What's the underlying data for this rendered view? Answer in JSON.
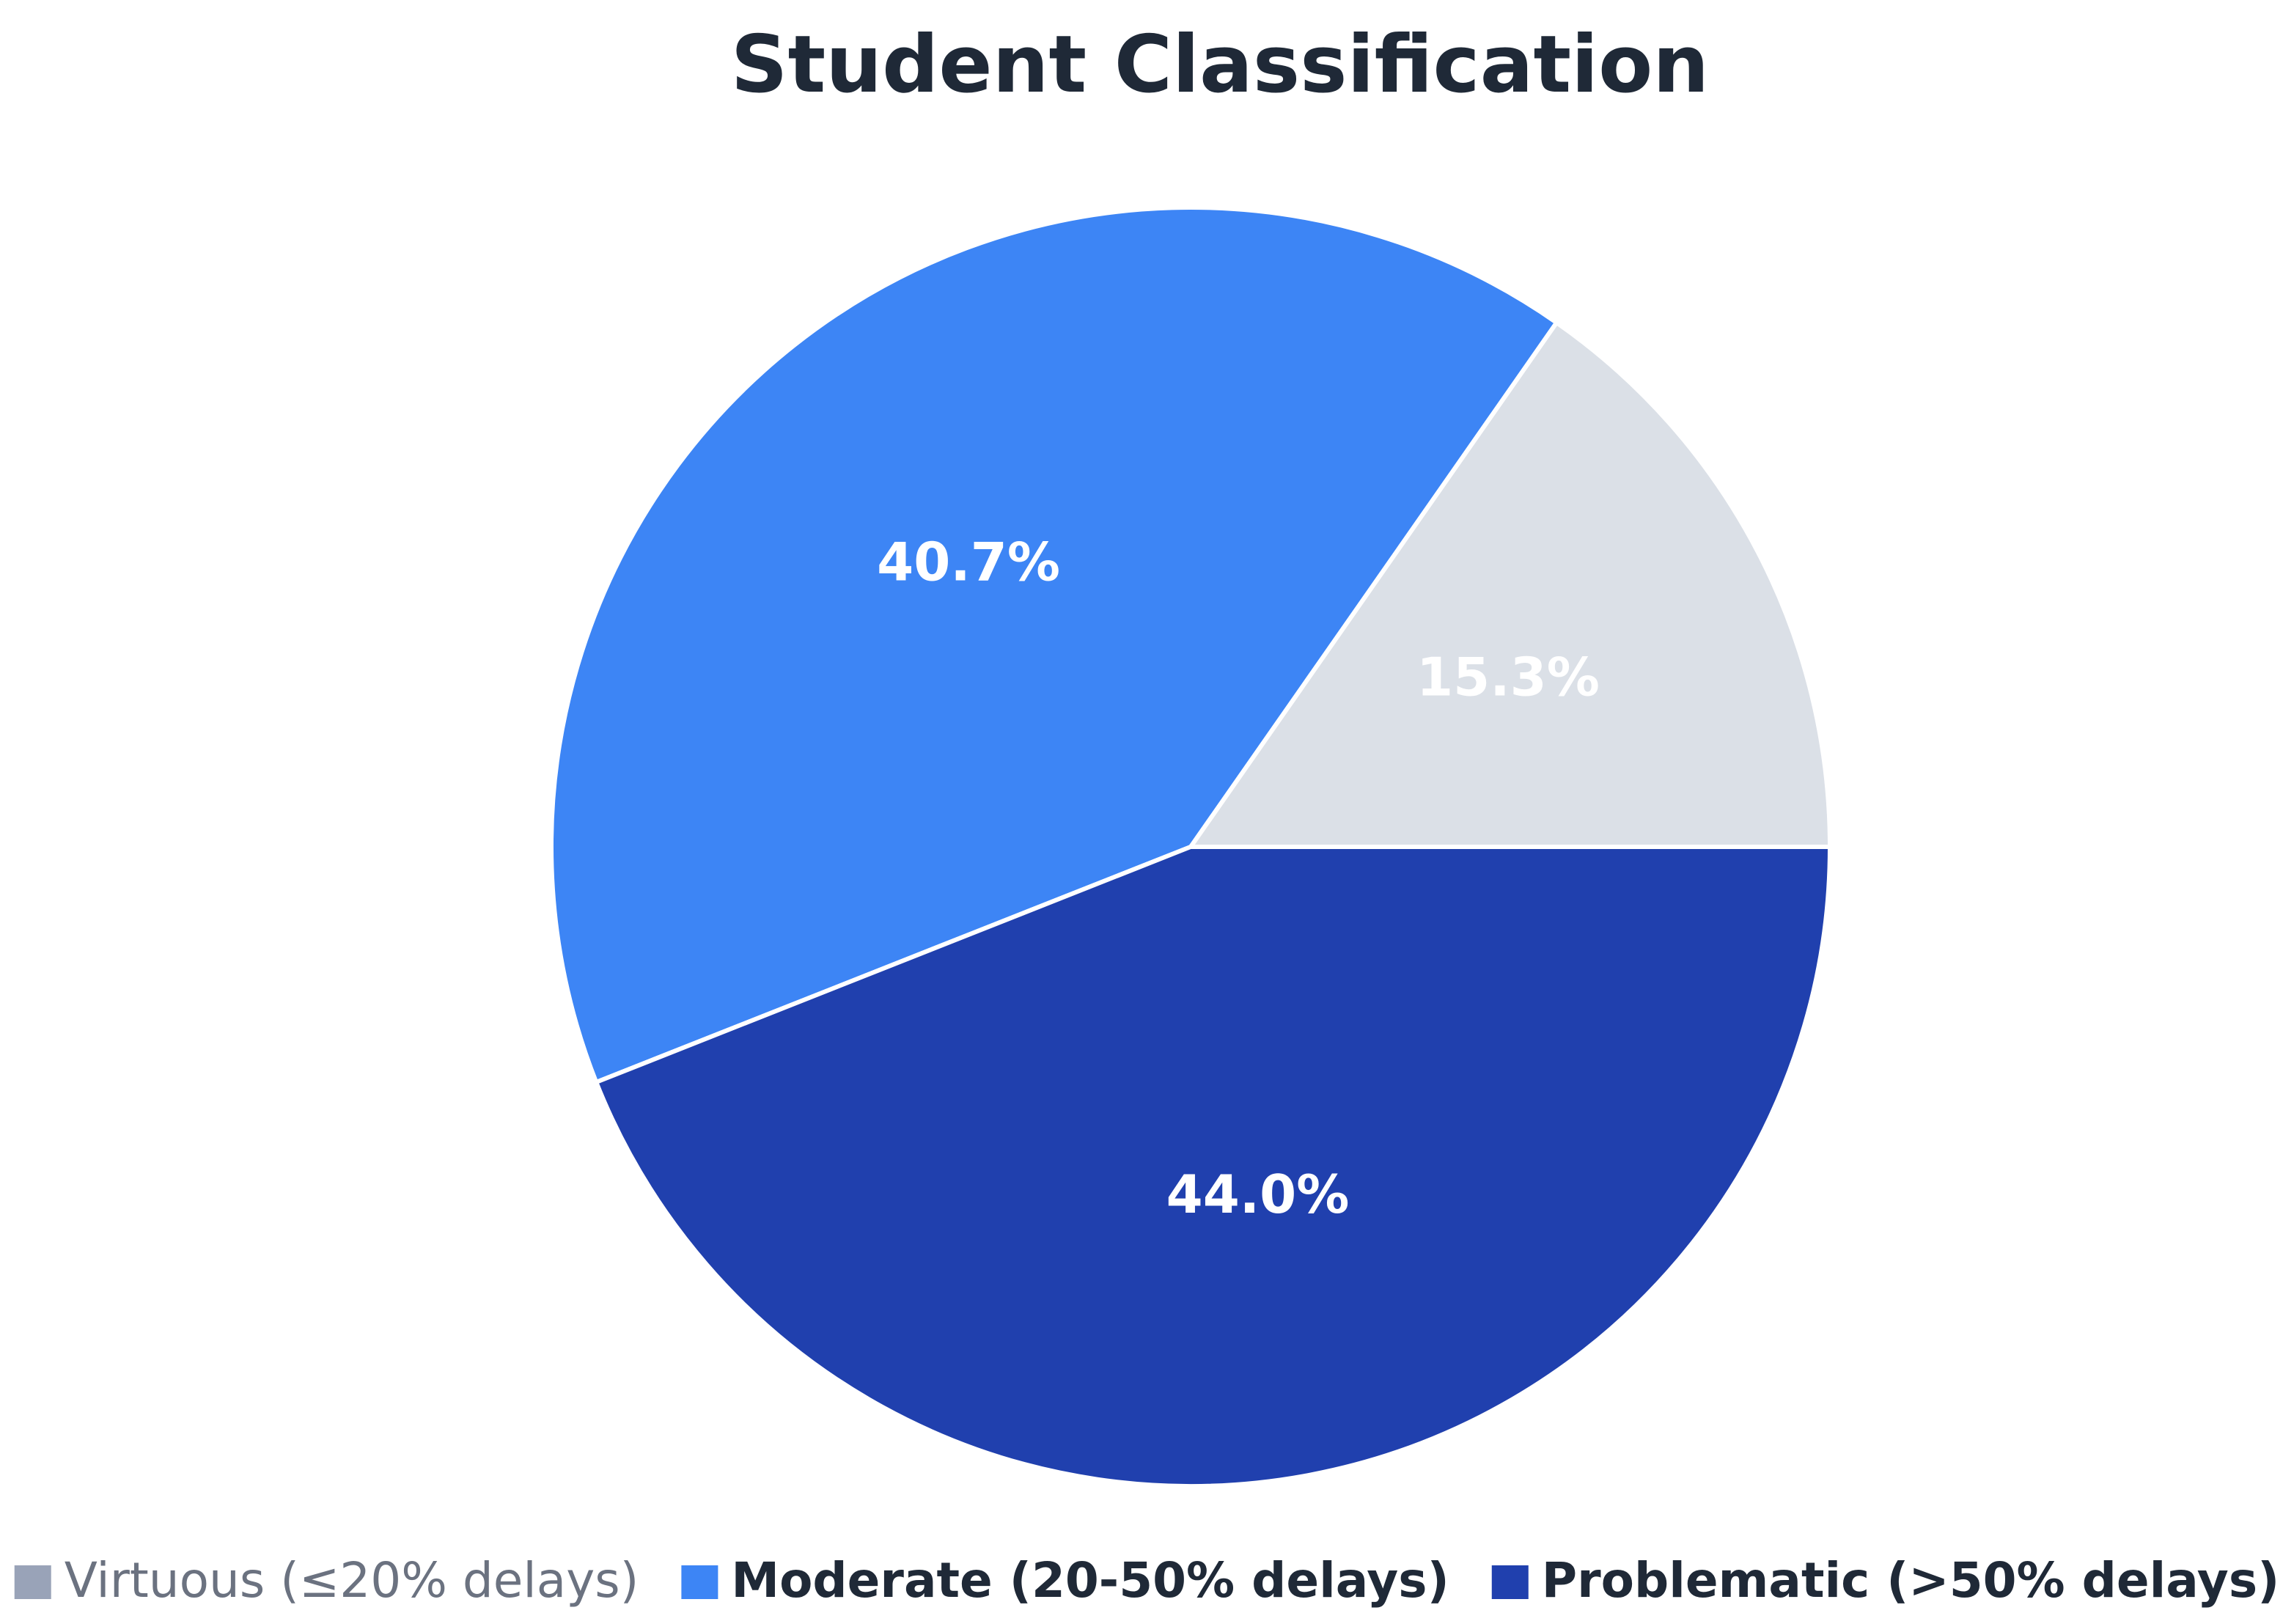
{
  "chart_data": {
    "type": "pie",
    "title": "Student Classification",
    "categories": [
      "Virtuous (≤20% delays)",
      "Moderate (20-50% delays)",
      "Problematic (>50% delays)"
    ],
    "values": [
      15.3,
      40.7,
      44.0
    ],
    "value_labels": [
      "15.3%",
      "40.7%",
      "44.0%"
    ],
    "colors": [
      "#dbe0e7",
      "#3d85f5",
      "#2040ae"
    ],
    "legend_swatch_colors": [
      "#99a3b8",
      "#3d85f5",
      "#2040ae"
    ],
    "legend_hidden": [
      true,
      false,
      false
    ],
    "legend_position": "bottom"
  }
}
